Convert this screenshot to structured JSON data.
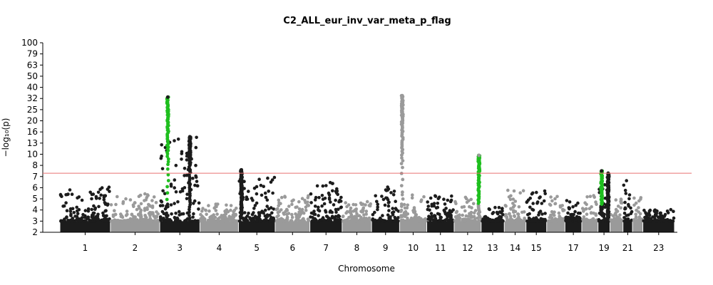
{
  "chart_data": {
    "type": "scatter",
    "subtype": "manhattan",
    "title": "C2_ALL_eur_inv_var_meta_p_flag",
    "xlabel": "Chromosome",
    "ylabel": "−log₁₀(p)",
    "y_scale": "compressed above 10",
    "yticks": [
      2,
      3,
      4,
      5,
      6,
      7,
      8,
      10,
      13,
      16,
      20,
      25,
      32,
      40,
      50,
      63,
      79,
      100
    ],
    "ylim": [
      2,
      100
    ],
    "significance_line": {
      "value": 7.3,
      "color": "#e87070"
    },
    "colors": {
      "odd": "#1c1c1c",
      "even": "#9a9a9a",
      "highlight": "#1fbf1f"
    },
    "chromosomes": [
      {
        "label": "1",
        "size": 249,
        "max": 6.1
      },
      {
        "label": "2",
        "size": 243,
        "max": 5.6
      },
      {
        "label": "3",
        "size": 198,
        "max": 14.6
      },
      {
        "label": "4",
        "size": 190,
        "max": 4.6
      },
      {
        "label": "5",
        "size": 181,
        "max": 7.0
      },
      {
        "label": "6",
        "size": 171,
        "max": 5.4
      },
      {
        "label": "7",
        "size": 159,
        "max": 6.6
      },
      {
        "label": "8",
        "size": 145,
        "max": 5.0
      },
      {
        "label": "9",
        "size": 138,
        "max": 6.3
      },
      {
        "label": "10",
        "size": 134,
        "max": 5.4
      },
      {
        "label": "11",
        "size": 135,
        "max": 5.3
      },
      {
        "label": "12",
        "size": 133,
        "max": 5.2
      },
      {
        "label": "13",
        "size": 114,
        "max": 4.3
      },
      {
        "label": "14",
        "size": 107,
        "max": 5.8
      },
      {
        "label": "15",
        "size": 102,
        "max": 5.9
      },
      {
        "label": "16",
        "size": 90,
        "max": 5.4
      },
      {
        "label": "17",
        "size": 83,
        "max": 5.0
      },
      {
        "label": "18",
        "size": 80,
        "max": 5.3
      },
      {
        "label": "19",
        "size": 59,
        "max": 7.3
      },
      {
        "label": "20",
        "size": 64,
        "max": 5.0
      },
      {
        "label": "21",
        "size": 47,
        "max": 6.8
      },
      {
        "label": "22",
        "size": 51,
        "max": 5.2
      },
      {
        "label": "23",
        "size": 156,
        "max": 4.1
      }
    ],
    "xtick_labels": [
      "1",
      "2",
      "3",
      "4",
      "5",
      "6",
      "7",
      "8",
      "9",
      "10",
      "11",
      "12",
      "13",
      "14",
      "15",
      "17",
      "19",
      "21",
      "23"
    ],
    "peaks": [
      {
        "chrom": "3",
        "pos": 0.2,
        "top": 33,
        "highlight": true
      },
      {
        "chrom": "3",
        "pos": 0.75,
        "top": 14.7,
        "highlight": false
      },
      {
        "chrom": "5",
        "pos": 0.08,
        "top": 7.6,
        "highlight": false
      },
      {
        "chrom": "10",
        "pos": 0.1,
        "top": 34,
        "highlight": false
      },
      {
        "chrom": "12",
        "pos": 0.92,
        "top": 9.8,
        "highlight": true
      },
      {
        "chrom": "19",
        "pos": 0.3,
        "top": 7.5,
        "highlight": true
      },
      {
        "chrom": "19",
        "pos": 0.85,
        "top": 7.3,
        "highlight": false
      }
    ]
  }
}
